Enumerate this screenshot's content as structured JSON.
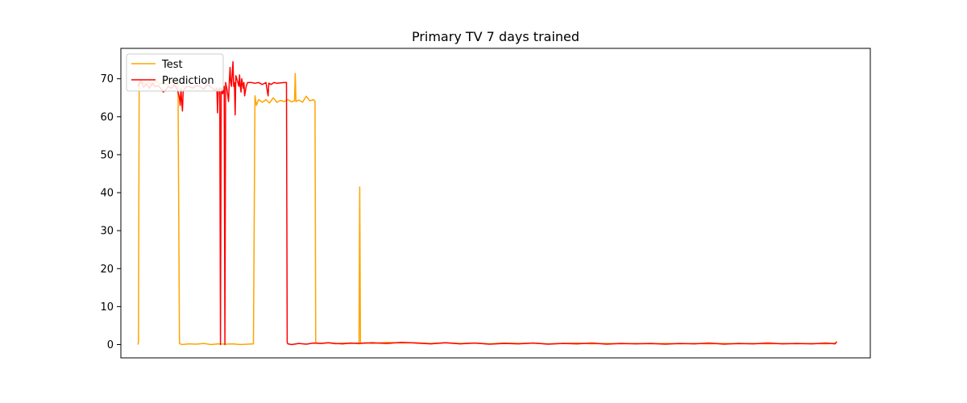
{
  "chart_data": {
    "type": "line",
    "title": "Primary TV 7 days trained",
    "xlabel": "",
    "ylabel": "",
    "x_ticks_visible": false,
    "xlim": [
      -23,
      1000
    ],
    "ylim": [
      -3.5,
      78
    ],
    "y_ticks": [
      0,
      10,
      20,
      30,
      40,
      50,
      60,
      70
    ],
    "grid": false,
    "legend_position": "top-left",
    "series": [
      {
        "name": "Test",
        "color": "#ffa500",
        "points": [
          [
            0,
            0.0
          ],
          [
            1,
            0.5
          ],
          [
            2,
            68.0
          ],
          [
            5,
            69.5
          ],
          [
            10,
            68.5
          ],
          [
            15,
            69.0
          ],
          [
            20,
            68.2
          ],
          [
            25,
            69.3
          ],
          [
            30,
            68.6
          ],
          [
            35,
            69.0
          ],
          [
            40,
            68.4
          ],
          [
            45,
            69.2
          ],
          [
            50,
            68.8
          ],
          [
            55,
            68.9
          ],
          [
            57,
            0.3
          ],
          [
            60,
            0.0
          ],
          [
            70,
            0.2
          ],
          [
            80,
            0.1
          ],
          [
            90,
            0.3
          ],
          [
            100,
            0.0
          ],
          [
            110,
            0.2
          ],
          [
            120,
            0.1
          ],
          [
            130,
            0.2
          ],
          [
            140,
            0.0
          ],
          [
            150,
            0.1
          ],
          [
            158,
            0.2
          ],
          [
            160,
            65.5
          ],
          [
            162,
            63.0
          ],
          [
            165,
            64.5
          ],
          [
            170,
            63.8
          ],
          [
            175,
            64.5
          ],
          [
            180,
            63.6
          ],
          [
            185,
            65.0
          ],
          [
            190,
            63.8
          ],
          [
            195,
            64.3
          ],
          [
            200,
            64.0
          ],
          [
            205,
            64.5
          ],
          [
            210,
            63.9
          ],
          [
            214,
            64.2
          ],
          [
            215,
            71.4
          ],
          [
            216,
            64.0
          ],
          [
            220,
            64.4
          ],
          [
            225,
            63.8
          ],
          [
            230,
            65.4
          ],
          [
            235,
            64.2
          ],
          [
            240,
            64.5
          ],
          [
            242,
            64.0
          ],
          [
            243,
            0.5
          ],
          [
            250,
            0.3
          ],
          [
            260,
            0.5
          ],
          [
            270,
            0.2
          ],
          [
            280,
            0.4
          ],
          [
            290,
            0.3
          ],
          [
            300,
            0.4
          ],
          [
            302,
            0.2
          ],
          [
            303,
            41.5
          ],
          [
            304,
            0.3
          ],
          [
            310,
            0.5
          ],
          [
            320,
            0.3
          ],
          [
            340,
            0.6
          ],
          [
            360,
            0.4
          ],
          [
            380,
            0.5
          ],
          [
            400,
            0.3
          ],
          [
            420,
            0.5
          ],
          [
            440,
            0.3
          ],
          [
            460,
            0.4
          ],
          [
            480,
            0.2
          ],
          [
            500,
            0.4
          ],
          [
            520,
            0.3
          ],
          [
            540,
            0.4
          ],
          [
            560,
            0.2
          ],
          [
            580,
            0.3
          ],
          [
            600,
            0.4
          ],
          [
            620,
            0.2
          ],
          [
            640,
            0.3
          ],
          [
            660,
            0.2
          ],
          [
            680,
            0.3
          ],
          [
            700,
            0.2
          ],
          [
            720,
            0.3
          ],
          [
            740,
            0.2
          ],
          [
            760,
            0.3
          ],
          [
            780,
            0.2
          ],
          [
            800,
            0.3
          ],
          [
            820,
            0.2
          ],
          [
            840,
            0.3
          ],
          [
            860,
            0.2
          ],
          [
            880,
            0.3
          ],
          [
            900,
            0.2
          ],
          [
            920,
            0.3
          ],
          [
            940,
            0.2
          ],
          [
            954,
            0.4
          ]
        ]
      },
      {
        "name": "Prediction",
        "color": "#ff0000",
        "points": [
          [
            0,
            68.0
          ],
          [
            4,
            69.5
          ],
          [
            8,
            67.8
          ],
          [
            12,
            68.6
          ],
          [
            16,
            67.5
          ],
          [
            20,
            68.9
          ],
          [
            24,
            67.9
          ],
          [
            28,
            68.2
          ],
          [
            32,
            67.3
          ],
          [
            35,
            66.5
          ],
          [
            38,
            67.0
          ],
          [
            42,
            68.0
          ],
          [
            46,
            67.5
          ],
          [
            50,
            68.4
          ],
          [
            54,
            67.2
          ],
          [
            57,
            65.0
          ],
          [
            58,
            63.0
          ],
          [
            59,
            67.5
          ],
          [
            60,
            64.0
          ],
          [
            61,
            61.5
          ],
          [
            62,
            66.8
          ],
          [
            66,
            67.8
          ],
          [
            70,
            68.0
          ],
          [
            75,
            67.5
          ],
          [
            80,
            68.2
          ],
          [
            85,
            68.0
          ],
          [
            90,
            67.2
          ],
          [
            95,
            68.5
          ],
          [
            100,
            67.8
          ],
          [
            105,
            67.0
          ],
          [
            108,
            67.5
          ],
          [
            109,
            61.0
          ],
          [
            110,
            67.0
          ],
          [
            112,
            67.6
          ],
          [
            113,
            0.0
          ],
          [
            114,
            67.5
          ],
          [
            116,
            66.0
          ],
          [
            118,
            68.0
          ],
          [
            119,
            0.0
          ],
          [
            120,
            69.0
          ],
          [
            122,
            67.0
          ],
          [
            124,
            64.0
          ],
          [
            125,
            69.0
          ],
          [
            126,
            73.0
          ],
          [
            127,
            69.0
          ],
          [
            128,
            68.0
          ],
          [
            130,
            74.5
          ],
          [
            131,
            68.0
          ],
          [
            132,
            69.0
          ],
          [
            133,
            60.5
          ],
          [
            134,
            70.8
          ],
          [
            136,
            69.5
          ],
          [
            138,
            68.0
          ],
          [
            139,
            71.0
          ],
          [
            140,
            68.0
          ],
          [
            141,
            66.5
          ],
          [
            142,
            70.0
          ],
          [
            144,
            67.5
          ],
          [
            145,
            69.0
          ],
          [
            146,
            65.5
          ],
          [
            148,
            68.0
          ],
          [
            150,
            69.0
          ],
          [
            155,
            69.0
          ],
          [
            160,
            68.8
          ],
          [
            165,
            69.0
          ],
          [
            170,
            68.5
          ],
          [
            175,
            69.0
          ],
          [
            178,
            65.5
          ],
          [
            179,
            68.8
          ],
          [
            182,
            68.5
          ],
          [
            186,
            69.0
          ],
          [
            190,
            68.8
          ],
          [
            200,
            69.0
          ],
          [
            203,
            69.0
          ],
          [
            204,
            0.5
          ],
          [
            205,
            0.2
          ],
          [
            210,
            0.0
          ],
          [
            220,
            0.3
          ],
          [
            230,
            0.1
          ],
          [
            240,
            0.4
          ],
          [
            250,
            0.3
          ],
          [
            260,
            0.5
          ],
          [
            270,
            0.3
          ],
          [
            280,
            0.2
          ],
          [
            290,
            0.4
          ],
          [
            300,
            0.3
          ],
          [
            320,
            0.5
          ],
          [
            340,
            0.3
          ],
          [
            360,
            0.6
          ],
          [
            380,
            0.4
          ],
          [
            400,
            0.2
          ],
          [
            420,
            0.5
          ],
          [
            440,
            0.2
          ],
          [
            460,
            0.4
          ],
          [
            480,
            0.1
          ],
          [
            500,
            0.3
          ],
          [
            520,
            0.2
          ],
          [
            540,
            0.4
          ],
          [
            560,
            0.1
          ],
          [
            580,
            0.3
          ],
          [
            600,
            0.2
          ],
          [
            620,
            0.4
          ],
          [
            640,
            0.1
          ],
          [
            660,
            0.3
          ],
          [
            680,
            0.2
          ],
          [
            700,
            0.3
          ],
          [
            720,
            0.1
          ],
          [
            740,
            0.3
          ],
          [
            760,
            0.2
          ],
          [
            780,
            0.4
          ],
          [
            800,
            0.1
          ],
          [
            820,
            0.3
          ],
          [
            840,
            0.2
          ],
          [
            860,
            0.4
          ],
          [
            880,
            0.2
          ],
          [
            900,
            0.3
          ],
          [
            920,
            0.2
          ],
          [
            940,
            0.4
          ],
          [
            952,
            0.2
          ],
          [
            954,
            0.8
          ]
        ]
      }
    ]
  }
}
